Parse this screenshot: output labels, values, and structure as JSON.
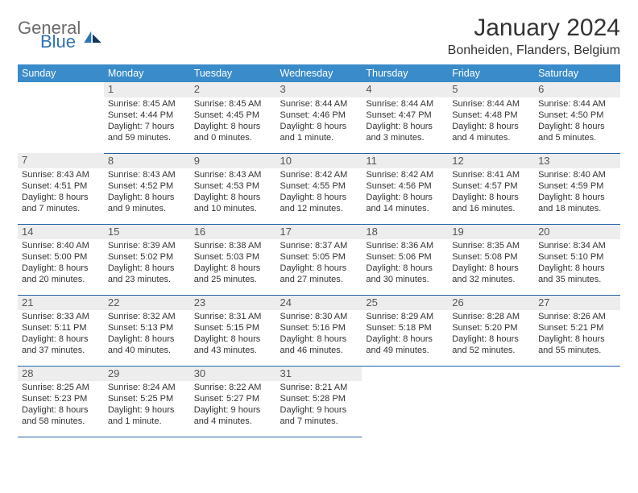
{
  "logo": {
    "word1": "General",
    "word2": "Blue"
  },
  "title": "January 2024",
  "location": "Bonheiden, Flanders, Belgium",
  "colors": {
    "header_bg": "#3a8bc9",
    "header_text": "#ffffff",
    "row_divider": "#2463a6",
    "daynum_bg": "#ededed",
    "body_text": "#333333",
    "logo_gray": "#6b6b6b",
    "logo_blue": "#2f73b5",
    "page_bg": "#ffffff"
  },
  "weekdays": [
    "Sunday",
    "Monday",
    "Tuesday",
    "Wednesday",
    "Thursday",
    "Friday",
    "Saturday"
  ],
  "start_offset": 1,
  "days": [
    {
      "n": "1",
      "sunrise": "8:45 AM",
      "sunset": "4:44 PM",
      "daylight": "7 hours and 59 minutes."
    },
    {
      "n": "2",
      "sunrise": "8:45 AM",
      "sunset": "4:45 PM",
      "daylight": "8 hours and 0 minutes."
    },
    {
      "n": "3",
      "sunrise": "8:44 AM",
      "sunset": "4:46 PM",
      "daylight": "8 hours and 1 minute."
    },
    {
      "n": "4",
      "sunrise": "8:44 AM",
      "sunset": "4:47 PM",
      "daylight": "8 hours and 3 minutes."
    },
    {
      "n": "5",
      "sunrise": "8:44 AM",
      "sunset": "4:48 PM",
      "daylight": "8 hours and 4 minutes."
    },
    {
      "n": "6",
      "sunrise": "8:44 AM",
      "sunset": "4:50 PM",
      "daylight": "8 hours and 5 minutes."
    },
    {
      "n": "7",
      "sunrise": "8:43 AM",
      "sunset": "4:51 PM",
      "daylight": "8 hours and 7 minutes."
    },
    {
      "n": "8",
      "sunrise": "8:43 AM",
      "sunset": "4:52 PM",
      "daylight": "8 hours and 9 minutes."
    },
    {
      "n": "9",
      "sunrise": "8:43 AM",
      "sunset": "4:53 PM",
      "daylight": "8 hours and 10 minutes."
    },
    {
      "n": "10",
      "sunrise": "8:42 AM",
      "sunset": "4:55 PM",
      "daylight": "8 hours and 12 minutes."
    },
    {
      "n": "11",
      "sunrise": "8:42 AM",
      "sunset": "4:56 PM",
      "daylight": "8 hours and 14 minutes."
    },
    {
      "n": "12",
      "sunrise": "8:41 AM",
      "sunset": "4:57 PM",
      "daylight": "8 hours and 16 minutes."
    },
    {
      "n": "13",
      "sunrise": "8:40 AM",
      "sunset": "4:59 PM",
      "daylight": "8 hours and 18 minutes."
    },
    {
      "n": "14",
      "sunrise": "8:40 AM",
      "sunset": "5:00 PM",
      "daylight": "8 hours and 20 minutes."
    },
    {
      "n": "15",
      "sunrise": "8:39 AM",
      "sunset": "5:02 PM",
      "daylight": "8 hours and 23 minutes."
    },
    {
      "n": "16",
      "sunrise": "8:38 AM",
      "sunset": "5:03 PM",
      "daylight": "8 hours and 25 minutes."
    },
    {
      "n": "17",
      "sunrise": "8:37 AM",
      "sunset": "5:05 PM",
      "daylight": "8 hours and 27 minutes."
    },
    {
      "n": "18",
      "sunrise": "8:36 AM",
      "sunset": "5:06 PM",
      "daylight": "8 hours and 30 minutes."
    },
    {
      "n": "19",
      "sunrise": "8:35 AM",
      "sunset": "5:08 PM",
      "daylight": "8 hours and 32 minutes."
    },
    {
      "n": "20",
      "sunrise": "8:34 AM",
      "sunset": "5:10 PM",
      "daylight": "8 hours and 35 minutes."
    },
    {
      "n": "21",
      "sunrise": "8:33 AM",
      "sunset": "5:11 PM",
      "daylight": "8 hours and 37 minutes."
    },
    {
      "n": "22",
      "sunrise": "8:32 AM",
      "sunset": "5:13 PM",
      "daylight": "8 hours and 40 minutes."
    },
    {
      "n": "23",
      "sunrise": "8:31 AM",
      "sunset": "5:15 PM",
      "daylight": "8 hours and 43 minutes."
    },
    {
      "n": "24",
      "sunrise": "8:30 AM",
      "sunset": "5:16 PM",
      "daylight": "8 hours and 46 minutes."
    },
    {
      "n": "25",
      "sunrise": "8:29 AM",
      "sunset": "5:18 PM",
      "daylight": "8 hours and 49 minutes."
    },
    {
      "n": "26",
      "sunrise": "8:28 AM",
      "sunset": "5:20 PM",
      "daylight": "8 hours and 52 minutes."
    },
    {
      "n": "27",
      "sunrise": "8:26 AM",
      "sunset": "5:21 PM",
      "daylight": "8 hours and 55 minutes."
    },
    {
      "n": "28",
      "sunrise": "8:25 AM",
      "sunset": "5:23 PM",
      "daylight": "8 hours and 58 minutes."
    },
    {
      "n": "29",
      "sunrise": "8:24 AM",
      "sunset": "5:25 PM",
      "daylight": "9 hours and 1 minute."
    },
    {
      "n": "30",
      "sunrise": "8:22 AM",
      "sunset": "5:27 PM",
      "daylight": "9 hours and 4 minutes."
    },
    {
      "n": "31",
      "sunrise": "8:21 AM",
      "sunset": "5:28 PM",
      "daylight": "9 hours and 7 minutes."
    }
  ],
  "labels": {
    "sunrise_prefix": "Sunrise: ",
    "sunset_prefix": "Sunset: ",
    "daylight_prefix": "Daylight: "
  }
}
